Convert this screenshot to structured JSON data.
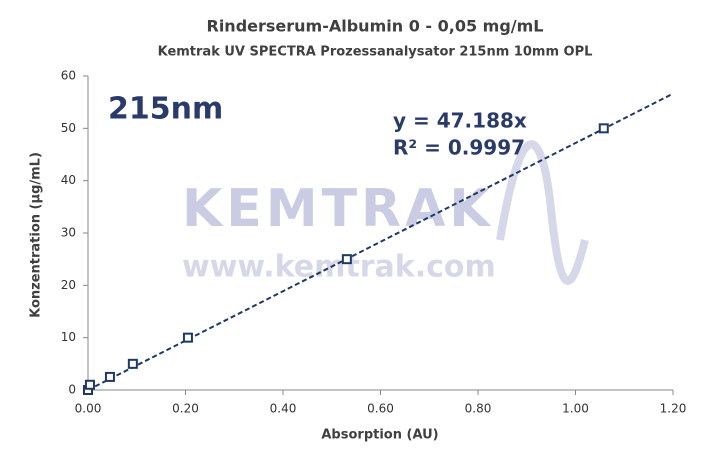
{
  "chart_data": {
    "type": "scatter",
    "title": "Rinderserum-Albumin 0 - 0,05 mg/mL",
    "subtitle": "Kemtrak UV SPECTRA Prozessanalysator 215nm 10mm OPL",
    "x_label": "Absorption (AU)",
    "y_label": "Konzentration (µg/mL)",
    "wavelength_label": "215nm",
    "watermark": "KEMTRAK",
    "watermark_url": "www.kemtrak.com",
    "x": [
      0.0,
      0.004,
      0.045,
      0.092,
      0.205,
      0.531,
      1.058
    ],
    "values": [
      0,
      1,
      2.5,
      5,
      10,
      25,
      50
    ],
    "color": "#1f3864",
    "trendline": {
      "slope": 47.188,
      "label": "y = 47.188x",
      "r2_label": "R² = 0.9997",
      "color": "#1f3864"
    },
    "xlim": [
      0,
      1.2
    ],
    "ylim": [
      0,
      60
    ],
    "xticks": [
      {
        "value": 0,
        "label": "0.00"
      },
      {
        "value": 0.2,
        "label": "0.20"
      },
      {
        "value": 0.4,
        "label": "0.40"
      },
      {
        "value": 0.6,
        "label": "0.60"
      },
      {
        "value": 0.8,
        "label": "0.80"
      },
      {
        "value": 1.0,
        "label": "1.00"
      },
      {
        "value": 1.2,
        "label": "1.20"
      }
    ],
    "yticks": [
      0,
      10,
      20,
      30,
      40,
      50,
      60
    ],
    "grid": false
  }
}
